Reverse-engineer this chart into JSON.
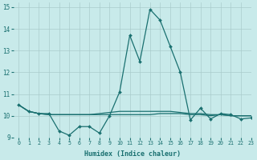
{
  "xlabel": "Humidex (Indice chaleur)",
  "background_color": "#c8eaea",
  "grid_color": "#aacccc",
  "line_color": "#1a7070",
  "xlim": [
    -0.5,
    23
  ],
  "ylim": [
    9,
    15.2
  ],
  "xticks": [
    0,
    1,
    2,
    3,
    4,
    5,
    6,
    7,
    8,
    9,
    10,
    11,
    12,
    13,
    14,
    15,
    16,
    17,
    18,
    19,
    20,
    21,
    22,
    23
  ],
  "yticks": [
    9,
    10,
    11,
    12,
    13,
    14,
    15
  ],
  "series": [
    {
      "y": [
        10.5,
        10.2,
        10.1,
        10.1,
        9.3,
        9.1,
        9.5,
        9.5,
        9.2,
        10.0,
        11.1,
        13.7,
        12.5,
        14.9,
        14.4,
        13.2,
        12.0,
        9.8,
        10.35,
        9.85,
        10.1,
        10.05,
        9.85,
        9.9
      ],
      "marker": "D",
      "lw": 0.9,
      "ms": 2.0
    },
    {
      "y": [
        10.5,
        10.2,
        10.1,
        10.05,
        10.05,
        10.05,
        10.05,
        10.05,
        10.05,
        10.05,
        10.05,
        10.05,
        10.05,
        10.05,
        10.1,
        10.1,
        10.1,
        10.05,
        10.05,
        10.0,
        10.05,
        10.0,
        10.0,
        10.0
      ],
      "marker": null,
      "lw": 0.9,
      "ms": 0
    },
    {
      "y": [
        10.5,
        10.2,
        10.1,
        10.05,
        10.05,
        10.05,
        10.05,
        10.05,
        10.1,
        10.15,
        10.2,
        10.2,
        10.2,
        10.2,
        10.2,
        10.2,
        10.15,
        10.1,
        10.1,
        10.05,
        10.05,
        10.0,
        10.0,
        10.0
      ],
      "marker": null,
      "lw": 0.9,
      "ms": 0
    }
  ]
}
